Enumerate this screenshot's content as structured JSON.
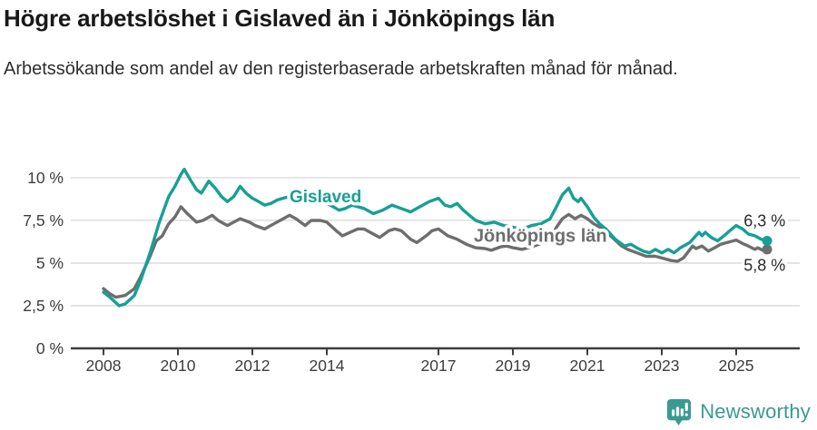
{
  "header": {
    "title": "Högre arbetslöshet i Gislaved än i Jönköpings län",
    "subtitle": "Arbetssökande som andel av den registerbaserade arbetskraften månad för månad."
  },
  "footer": {
    "brand": "Newsworthy",
    "brand_color": "#3a9a92",
    "logo_icon": "newsworthy-bubble-chart-icon"
  },
  "colors": {
    "gislaved": "#17a095",
    "jonkopings_lan": "#6d6e6e",
    "grid": "#dcdcdc",
    "axis": "#3f3f3f",
    "axis_text": "#3d3d3d",
    "value_label_text": "#2b2b2b",
    "background": "#ffffff"
  },
  "chart_data": {
    "type": "line",
    "title": "Högre arbetslöshet i Gislaved än i Jönköpings län",
    "xlabel": "",
    "ylabel": "Arbetssökande som andel av den registerbaserade arbetskraften",
    "unit": "%",
    "xlim": [
      2008,
      2026
    ],
    "ylim": [
      0,
      10.85
    ],
    "grid": "horizontal",
    "legend_position": "inline-labels",
    "x_ticks": [
      {
        "v": 2008,
        "label": "2008"
      },
      {
        "v": 2010,
        "label": "2010"
      },
      {
        "v": 2012,
        "label": "2012"
      },
      {
        "v": 2014,
        "label": "2014"
      },
      {
        "v": 2017,
        "label": "2017"
      },
      {
        "v": 2019,
        "label": "2019"
      },
      {
        "v": 2021,
        "label": "2021"
      },
      {
        "v": 2023,
        "label": "2023"
      },
      {
        "v": 2025,
        "label": "2025"
      }
    ],
    "y_ticks": [
      {
        "v": 0,
        "label": "0 %"
      },
      {
        "v": 2.5,
        "label": "2,5 %"
      },
      {
        "v": 5,
        "label": "5 %"
      },
      {
        "v": 7.5,
        "label": "7,5 %"
      },
      {
        "v": 10,
        "label": "10 %"
      }
    ],
    "series": [
      {
        "name": "Jönköpings län",
        "color": "#6d6e6e",
        "end_value_label": "5,8 %",
        "points": [
          [
            2008.0,
            3.5
          ],
          [
            2008.17,
            3.2
          ],
          [
            2008.33,
            3.0
          ],
          [
            2008.58,
            3.1
          ],
          [
            2008.83,
            3.5
          ],
          [
            2009.0,
            4.2
          ],
          [
            2009.25,
            5.4
          ],
          [
            2009.42,
            6.3
          ],
          [
            2009.58,
            6.6
          ],
          [
            2009.75,
            7.3
          ],
          [
            2009.92,
            7.7
          ],
          [
            2010.08,
            8.3
          ],
          [
            2010.25,
            7.9
          ],
          [
            2010.5,
            7.4
          ],
          [
            2010.67,
            7.5
          ],
          [
            2010.92,
            7.8
          ],
          [
            2011.08,
            7.5
          ],
          [
            2011.33,
            7.2
          ],
          [
            2011.5,
            7.4
          ],
          [
            2011.67,
            7.6
          ],
          [
            2011.92,
            7.4
          ],
          [
            2012.08,
            7.2
          ],
          [
            2012.33,
            7.0
          ],
          [
            2012.58,
            7.3
          ],
          [
            2012.83,
            7.6
          ],
          [
            2013.0,
            7.8
          ],
          [
            2013.17,
            7.6
          ],
          [
            2013.42,
            7.2
          ],
          [
            2013.58,
            7.5
          ],
          [
            2013.83,
            7.5
          ],
          [
            2014.0,
            7.4
          ],
          [
            2014.25,
            6.9
          ],
          [
            2014.42,
            6.6
          ],
          [
            2014.63,
            6.8
          ],
          [
            2014.83,
            7.0
          ],
          [
            2015.0,
            7.0
          ],
          [
            2015.25,
            6.7
          ],
          [
            2015.42,
            6.5
          ],
          [
            2015.67,
            6.9
          ],
          [
            2015.83,
            7.0
          ],
          [
            2016.0,
            6.9
          ],
          [
            2016.25,
            6.4
          ],
          [
            2016.42,
            6.2
          ],
          [
            2016.67,
            6.6
          ],
          [
            2016.83,
            6.9
          ],
          [
            2017.0,
            7.0
          ],
          [
            2017.25,
            6.6
          ],
          [
            2017.5,
            6.4
          ],
          [
            2017.75,
            6.1
          ],
          [
            2018.0,
            5.9
          ],
          [
            2018.25,
            5.85
          ],
          [
            2018.42,
            5.75
          ],
          [
            2018.67,
            5.95
          ],
          [
            2018.83,
            6.0
          ],
          [
            2019.0,
            5.9
          ],
          [
            2019.25,
            5.8
          ],
          [
            2019.5,
            5.95
          ],
          [
            2019.75,
            6.15
          ],
          [
            2020.0,
            6.4
          ],
          [
            2020.17,
            7.1
          ],
          [
            2020.33,
            7.6
          ],
          [
            2020.5,
            7.85
          ],
          [
            2020.67,
            7.6
          ],
          [
            2020.83,
            7.8
          ],
          [
            2021.0,
            7.6
          ],
          [
            2021.17,
            7.3
          ],
          [
            2021.42,
            7.0
          ],
          [
            2021.67,
            6.5
          ],
          [
            2021.92,
            6.0
          ],
          [
            2022.08,
            5.8
          ],
          [
            2022.33,
            5.6
          ],
          [
            2022.58,
            5.4
          ],
          [
            2022.83,
            5.4
          ],
          [
            2023.0,
            5.3
          ],
          [
            2023.25,
            5.15
          ],
          [
            2023.42,
            5.1
          ],
          [
            2023.58,
            5.3
          ],
          [
            2023.83,
            6.0
          ],
          [
            2023.92,
            5.85
          ],
          [
            2024.08,
            6.0
          ],
          [
            2024.25,
            5.7
          ],
          [
            2024.42,
            5.9
          ],
          [
            2024.58,
            6.1
          ],
          [
            2024.75,
            6.2
          ],
          [
            2025.0,
            6.35
          ],
          [
            2025.17,
            6.15
          ],
          [
            2025.33,
            6.0
          ],
          [
            2025.5,
            5.8
          ],
          [
            2025.58,
            5.9
          ],
          [
            2025.75,
            5.7
          ],
          [
            2025.83,
            5.8
          ]
        ]
      },
      {
        "name": "Gislaved",
        "color": "#17a095",
        "end_value_label": "6,3 %",
        "points": [
          [
            2008.0,
            3.3
          ],
          [
            2008.17,
            3.0
          ],
          [
            2008.42,
            2.5
          ],
          [
            2008.58,
            2.6
          ],
          [
            2008.83,
            3.1
          ],
          [
            2009.0,
            4.0
          ],
          [
            2009.25,
            5.6
          ],
          [
            2009.5,
            7.4
          ],
          [
            2009.75,
            8.9
          ],
          [
            2009.92,
            9.5
          ],
          [
            2010.08,
            10.2
          ],
          [
            2010.17,
            10.5
          ],
          [
            2010.33,
            9.9
          ],
          [
            2010.5,
            9.3
          ],
          [
            2010.63,
            9.1
          ],
          [
            2010.83,
            9.8
          ],
          [
            2011.0,
            9.4
          ],
          [
            2011.17,
            8.9
          ],
          [
            2011.33,
            8.6
          ],
          [
            2011.5,
            8.9
          ],
          [
            2011.67,
            9.5
          ],
          [
            2011.83,
            9.1
          ],
          [
            2012.0,
            8.8
          ],
          [
            2012.17,
            8.6
          ],
          [
            2012.33,
            8.4
          ],
          [
            2012.5,
            8.5
          ],
          [
            2012.67,
            8.7
          ],
          [
            2012.83,
            8.8
          ],
          [
            2013.0,
            8.9
          ],
          [
            2013.25,
            8.7
          ],
          [
            2013.5,
            8.6
          ],
          [
            2013.75,
            8.5
          ],
          [
            2014.0,
            8.5
          ],
          [
            2014.17,
            8.3
          ],
          [
            2014.33,
            8.1
          ],
          [
            2014.5,
            8.2
          ],
          [
            2014.67,
            8.4
          ],
          [
            2014.83,
            8.3
          ],
          [
            2015.0,
            8.2
          ],
          [
            2015.25,
            7.9
          ],
          [
            2015.5,
            8.1
          ],
          [
            2015.75,
            8.4
          ],
          [
            2016.0,
            8.2
          ],
          [
            2016.25,
            8.0
          ],
          [
            2016.5,
            8.3
          ],
          [
            2016.75,
            8.6
          ],
          [
            2017.0,
            8.8
          ],
          [
            2017.17,
            8.4
          ],
          [
            2017.33,
            8.3
          ],
          [
            2017.5,
            8.5
          ],
          [
            2017.67,
            8.1
          ],
          [
            2017.83,
            7.8
          ],
          [
            2018.0,
            7.5
          ],
          [
            2018.25,
            7.3
          ],
          [
            2018.5,
            7.4
          ],
          [
            2018.75,
            7.2
          ],
          [
            2019.0,
            7.1
          ],
          [
            2019.25,
            7.0
          ],
          [
            2019.5,
            7.2
          ],
          [
            2019.75,
            7.3
          ],
          [
            2020.0,
            7.6
          ],
          [
            2020.17,
            8.3
          ],
          [
            2020.33,
            9.0
          ],
          [
            2020.5,
            9.4
          ],
          [
            2020.63,
            8.8
          ],
          [
            2020.75,
            8.6
          ],
          [
            2020.83,
            8.8
          ],
          [
            2021.0,
            8.3
          ],
          [
            2021.17,
            7.7
          ],
          [
            2021.33,
            7.3
          ],
          [
            2021.5,
            7.0
          ],
          [
            2021.75,
            6.4
          ],
          [
            2022.0,
            6.0
          ],
          [
            2022.17,
            6.1
          ],
          [
            2022.33,
            5.9
          ],
          [
            2022.5,
            5.7
          ],
          [
            2022.67,
            5.6
          ],
          [
            2022.83,
            5.8
          ],
          [
            2023.0,
            5.6
          ],
          [
            2023.17,
            5.8
          ],
          [
            2023.33,
            5.6
          ],
          [
            2023.5,
            5.9
          ],
          [
            2023.75,
            6.2
          ],
          [
            2024.0,
            6.8
          ],
          [
            2024.08,
            6.6
          ],
          [
            2024.17,
            6.8
          ],
          [
            2024.33,
            6.5
          ],
          [
            2024.5,
            6.3
          ],
          [
            2024.67,
            6.6
          ],
          [
            2024.83,
            6.9
          ],
          [
            2025.0,
            7.2
          ],
          [
            2025.17,
            7.0
          ],
          [
            2025.33,
            6.7
          ],
          [
            2025.5,
            6.6
          ],
          [
            2025.67,
            6.4
          ],
          [
            2025.83,
            6.3
          ]
        ]
      }
    ],
    "annotations": [
      {
        "text": "Gislaved",
        "x": 2013.0,
        "y": 8.55,
        "color": "#17a095",
        "bold": true,
        "size": 19
      },
      {
        "text": "Jönköpings län",
        "x": 2017.95,
        "y": 6.25,
        "color": "#6d6e6e",
        "bold": true,
        "size": 20
      },
      {
        "text": "6,3 %",
        "x": 2025.2,
        "y": 7.15,
        "color": "#2b2b2b",
        "bold": false,
        "size": 18
      },
      {
        "text": "5,8 %",
        "x": 2025.2,
        "y": 4.55,
        "color": "#2b2b2b",
        "bold": false,
        "size": 18
      }
    ]
  }
}
